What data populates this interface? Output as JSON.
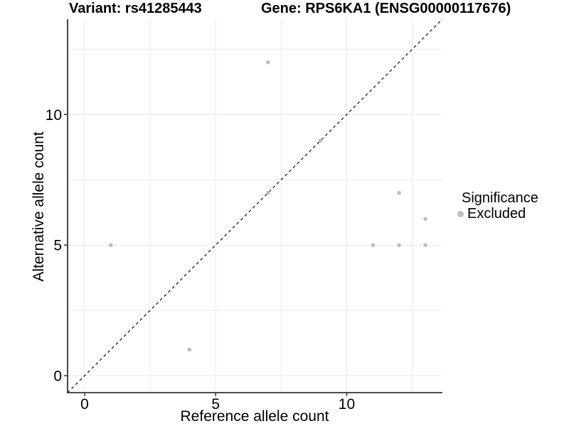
{
  "title": {
    "variant": "Variant: rs41285443",
    "gene": "Gene: RPS6KA1 (ENSG00000117676)"
  },
  "axes": {
    "x_label": "Reference allele count",
    "y_label": "Alternative allele count"
  },
  "legend": {
    "title": "Significance",
    "items": [
      {
        "label": "Excluded",
        "color": "#bebebe"
      }
    ]
  },
  "colors": {
    "background": "#ffffff",
    "grid": "#ebebeb",
    "axis_line": "#333333",
    "reference_line": "#1a1a1a",
    "tick": "#333333",
    "point": "#bebebe"
  },
  "chart_data": {
    "type": "scatter",
    "title": "Variant: rs41285443 | Gene: RPS6KA1 (ENSG00000117676)",
    "xlabel": "Reference allele count",
    "ylabel": "Alternative allele count",
    "xlim": [
      -0.65,
      13.65
    ],
    "ylim": [
      -0.65,
      13.65
    ],
    "x_ticks": [
      0,
      5,
      10
    ],
    "y_ticks": [
      0,
      5,
      10
    ],
    "grid_step": 2.5,
    "grid": true,
    "legend_position": "right",
    "reference_line": {
      "type": "identity y=x",
      "style": "dashed"
    },
    "series": [
      {
        "name": "Excluded",
        "color": "#bebebe",
        "points": [
          [
            1,
            5
          ],
          [
            4,
            1
          ],
          [
            7,
            7
          ],
          [
            7,
            12
          ],
          [
            9,
            9
          ],
          [
            11,
            5
          ],
          [
            12,
            5
          ],
          [
            12,
            7
          ],
          [
            13,
            5
          ],
          [
            13,
            6
          ]
        ]
      }
    ]
  }
}
